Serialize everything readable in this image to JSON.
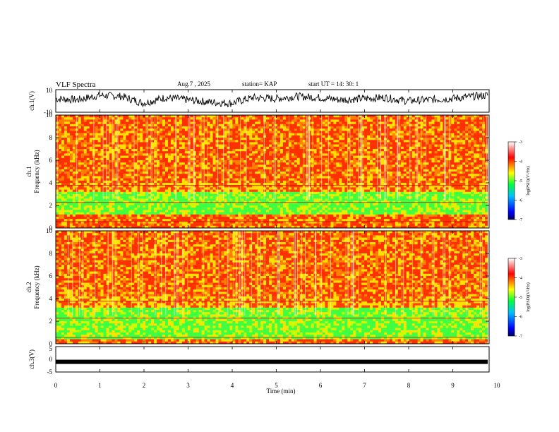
{
  "header": {
    "title": "VLF Spectra",
    "date": "Aug.7 , 2025",
    "station": "station= KAP",
    "start": "start UT = 14: 30: 1"
  },
  "colors": {
    "spectrum_scale": [
      "#000080",
      "#0000ff",
      "#00a0ff",
      "#00ff60",
      "#c0ff00",
      "#ffff00",
      "#ffa000",
      "#ff0000",
      "#ffffff"
    ]
  },
  "chart_data": [
    {
      "type": "line",
      "name": "ch1-waveform",
      "ylabel": "ch.1(V)",
      "ylim": [
        -10,
        10
      ],
      "y_ticks": [
        10,
        -10
      ],
      "x": [
        0,
        0.5,
        1.0,
        1.5,
        2.0,
        2.5,
        3.0,
        3.5,
        4.0,
        4.5,
        5.0,
        5.5,
        6.0,
        6.5,
        7.0,
        7.5,
        8.0,
        8.5,
        9.0,
        9.5,
        9.85
      ],
      "values": [
        2,
        1,
        5,
        4,
        -2,
        3,
        1,
        -1,
        -2,
        3,
        2,
        4,
        3,
        1,
        2,
        3,
        0,
        1,
        2,
        4,
        5
      ],
      "description": "noisy waveform fluctuating roughly between -5 and 8 V"
    },
    {
      "type": "heatmap",
      "name": "ch1-spectrogram",
      "ylabel": "ch.1\nFrequency (kHz)",
      "ylim": [
        0,
        10
      ],
      "y_ticks": [
        0,
        2,
        4,
        6,
        8,
        10
      ],
      "colorbar": {
        "label": "log(PSD)(V²/Hz)",
        "range": [
          -7,
          -3
        ],
        "ticks": [
          "-3",
          "-4",
          "-5",
          "-6",
          "-7"
        ]
      },
      "bands_khz": [
        {
          "from": 0,
          "to": 0.3,
          "level": -4
        },
        {
          "from": 0.3,
          "to": 1.2,
          "level": -4
        },
        {
          "from": 1.2,
          "to": 3.3,
          "level": -5
        },
        {
          "from": 3.3,
          "to": 4.0,
          "level": -4.5
        },
        {
          "from": 4.0,
          "to": 10,
          "level": -3.7
        }
      ]
    },
    {
      "type": "heatmap",
      "name": "ch2-spectrogram",
      "ylabel": "ch.2\nFrequency (kHz)",
      "ylim": [
        0,
        10
      ],
      "y_ticks": [
        0,
        2,
        4,
        6,
        8,
        10
      ],
      "colorbar": {
        "label": "log(PSD)(V²/Hz)",
        "range": [
          -7,
          -3
        ],
        "ticks": [
          "-3",
          "-4",
          "-5",
          "-6",
          "-7"
        ]
      },
      "bands_khz": [
        {
          "from": 0,
          "to": 0.5,
          "level": -4
        },
        {
          "from": 0.5,
          "to": 3.3,
          "level": -5
        },
        {
          "from": 3.3,
          "to": 4.2,
          "level": -4.5
        },
        {
          "from": 4.2,
          "to": 10,
          "level": -3.7
        }
      ]
    },
    {
      "type": "line",
      "name": "ch3-waveform",
      "ylabel": "ch.3(V)",
      "ylim": [
        -5,
        5
      ],
      "y_ticks": [
        5,
        0,
        -5
      ],
      "x": [
        0,
        9.85
      ],
      "values": [
        -1,
        -1
      ],
      "description": "flat thick band around -1 V"
    }
  ],
  "x_axis": {
    "label": "Time (min)",
    "range": [
      0,
      10
    ],
    "ticks": [
      "0",
      "1",
      "2",
      "3",
      "4",
      "5",
      "6",
      "7",
      "8",
      "9",
      "10"
    ]
  }
}
